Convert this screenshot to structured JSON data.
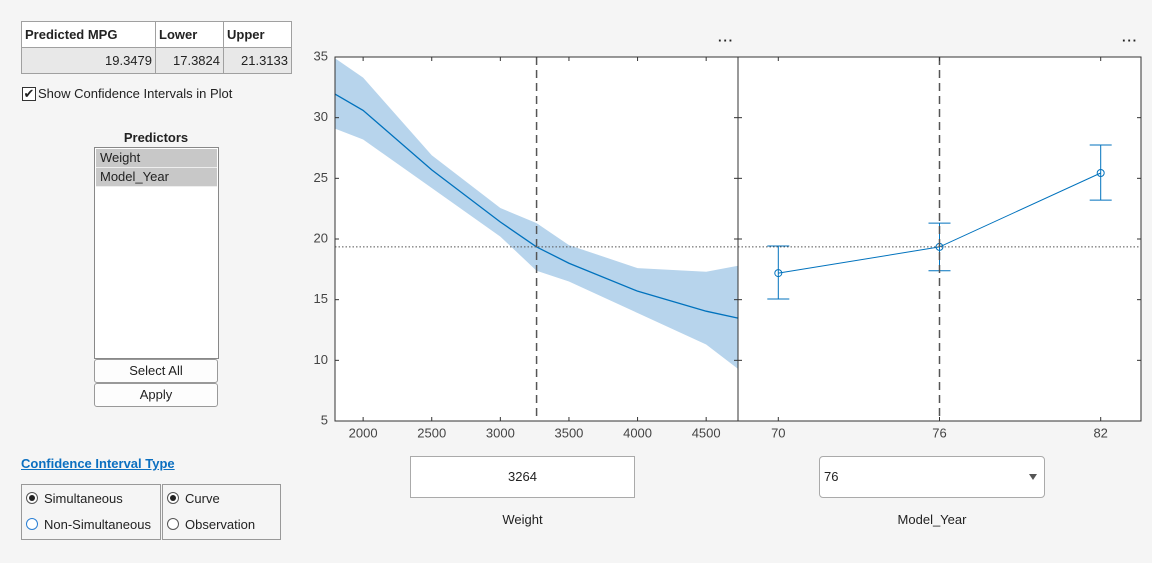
{
  "table": {
    "headers": [
      "Predicted MPG",
      "Lower",
      "Upper"
    ],
    "row": [
      19.3479,
      17.3824,
      21.3133
    ]
  },
  "checkbox": {
    "label": "Show Confidence Intervals in Plot",
    "checked": true
  },
  "predictors": {
    "title": "Predictors",
    "items": [
      "Weight",
      "Model_Year"
    ],
    "buttons": [
      "Select All",
      "Apply"
    ]
  },
  "ci_type": {
    "title": "Confidence Interval Type",
    "groups": [
      {
        "options": [
          "Simultaneous",
          "Non-Simultaneous"
        ],
        "selected": 0
      },
      {
        "options": [
          "Curve",
          "Observation"
        ],
        "selected": 0
      }
    ]
  },
  "chart_data": [
    {
      "type": "line",
      "xlabel": "Weight",
      "x": [
        1795,
        2000,
        2500,
        3000,
        3264,
        3500,
        4000,
        4500,
        4732
      ],
      "values": [
        31.95,
        30.6,
        25.7,
        21.4,
        19.3479,
        18.0,
        15.7,
        14.05,
        13.48
      ],
      "lower": [
        29.1,
        28.2,
        24.2,
        20.2,
        17.3824,
        16.5,
        13.9,
        11.3,
        9.3
      ],
      "upper": [
        34.9,
        33.3,
        26.9,
        22.55,
        21.3133,
        19.5,
        17.6,
        17.3,
        17.8
      ],
      "color": "#0072bd",
      "band_color": "#b7d4ec",
      "xlim": [
        1795,
        4732
      ],
      "ylim": [
        5,
        35
      ],
      "xticks": [
        2000,
        2500,
        3000,
        3500,
        4000,
        4500
      ],
      "yticks": [
        5,
        10,
        15,
        20,
        25,
        30,
        35
      ],
      "x_ref": 3264,
      "y_ref": 19.3479
    },
    {
      "type": "errorbar",
      "xlabel": "Model_Year",
      "x": [
        70,
        76,
        82
      ],
      "values": [
        17.19,
        19.3479,
        25.44
      ],
      "lower": [
        15.05,
        17.3824,
        23.2
      ],
      "upper": [
        19.42,
        21.3133,
        27.75
      ],
      "color": "#0072bd",
      "xlim": [
        68.5,
        83.5
      ],
      "ylim": [
        5,
        35
      ],
      "xticks": [
        70,
        76,
        82
      ],
      "yticks": [
        5,
        10,
        15,
        20,
        25,
        30,
        35
      ],
      "x_ref": 76,
      "y_ref": 19.3479
    }
  ]
}
